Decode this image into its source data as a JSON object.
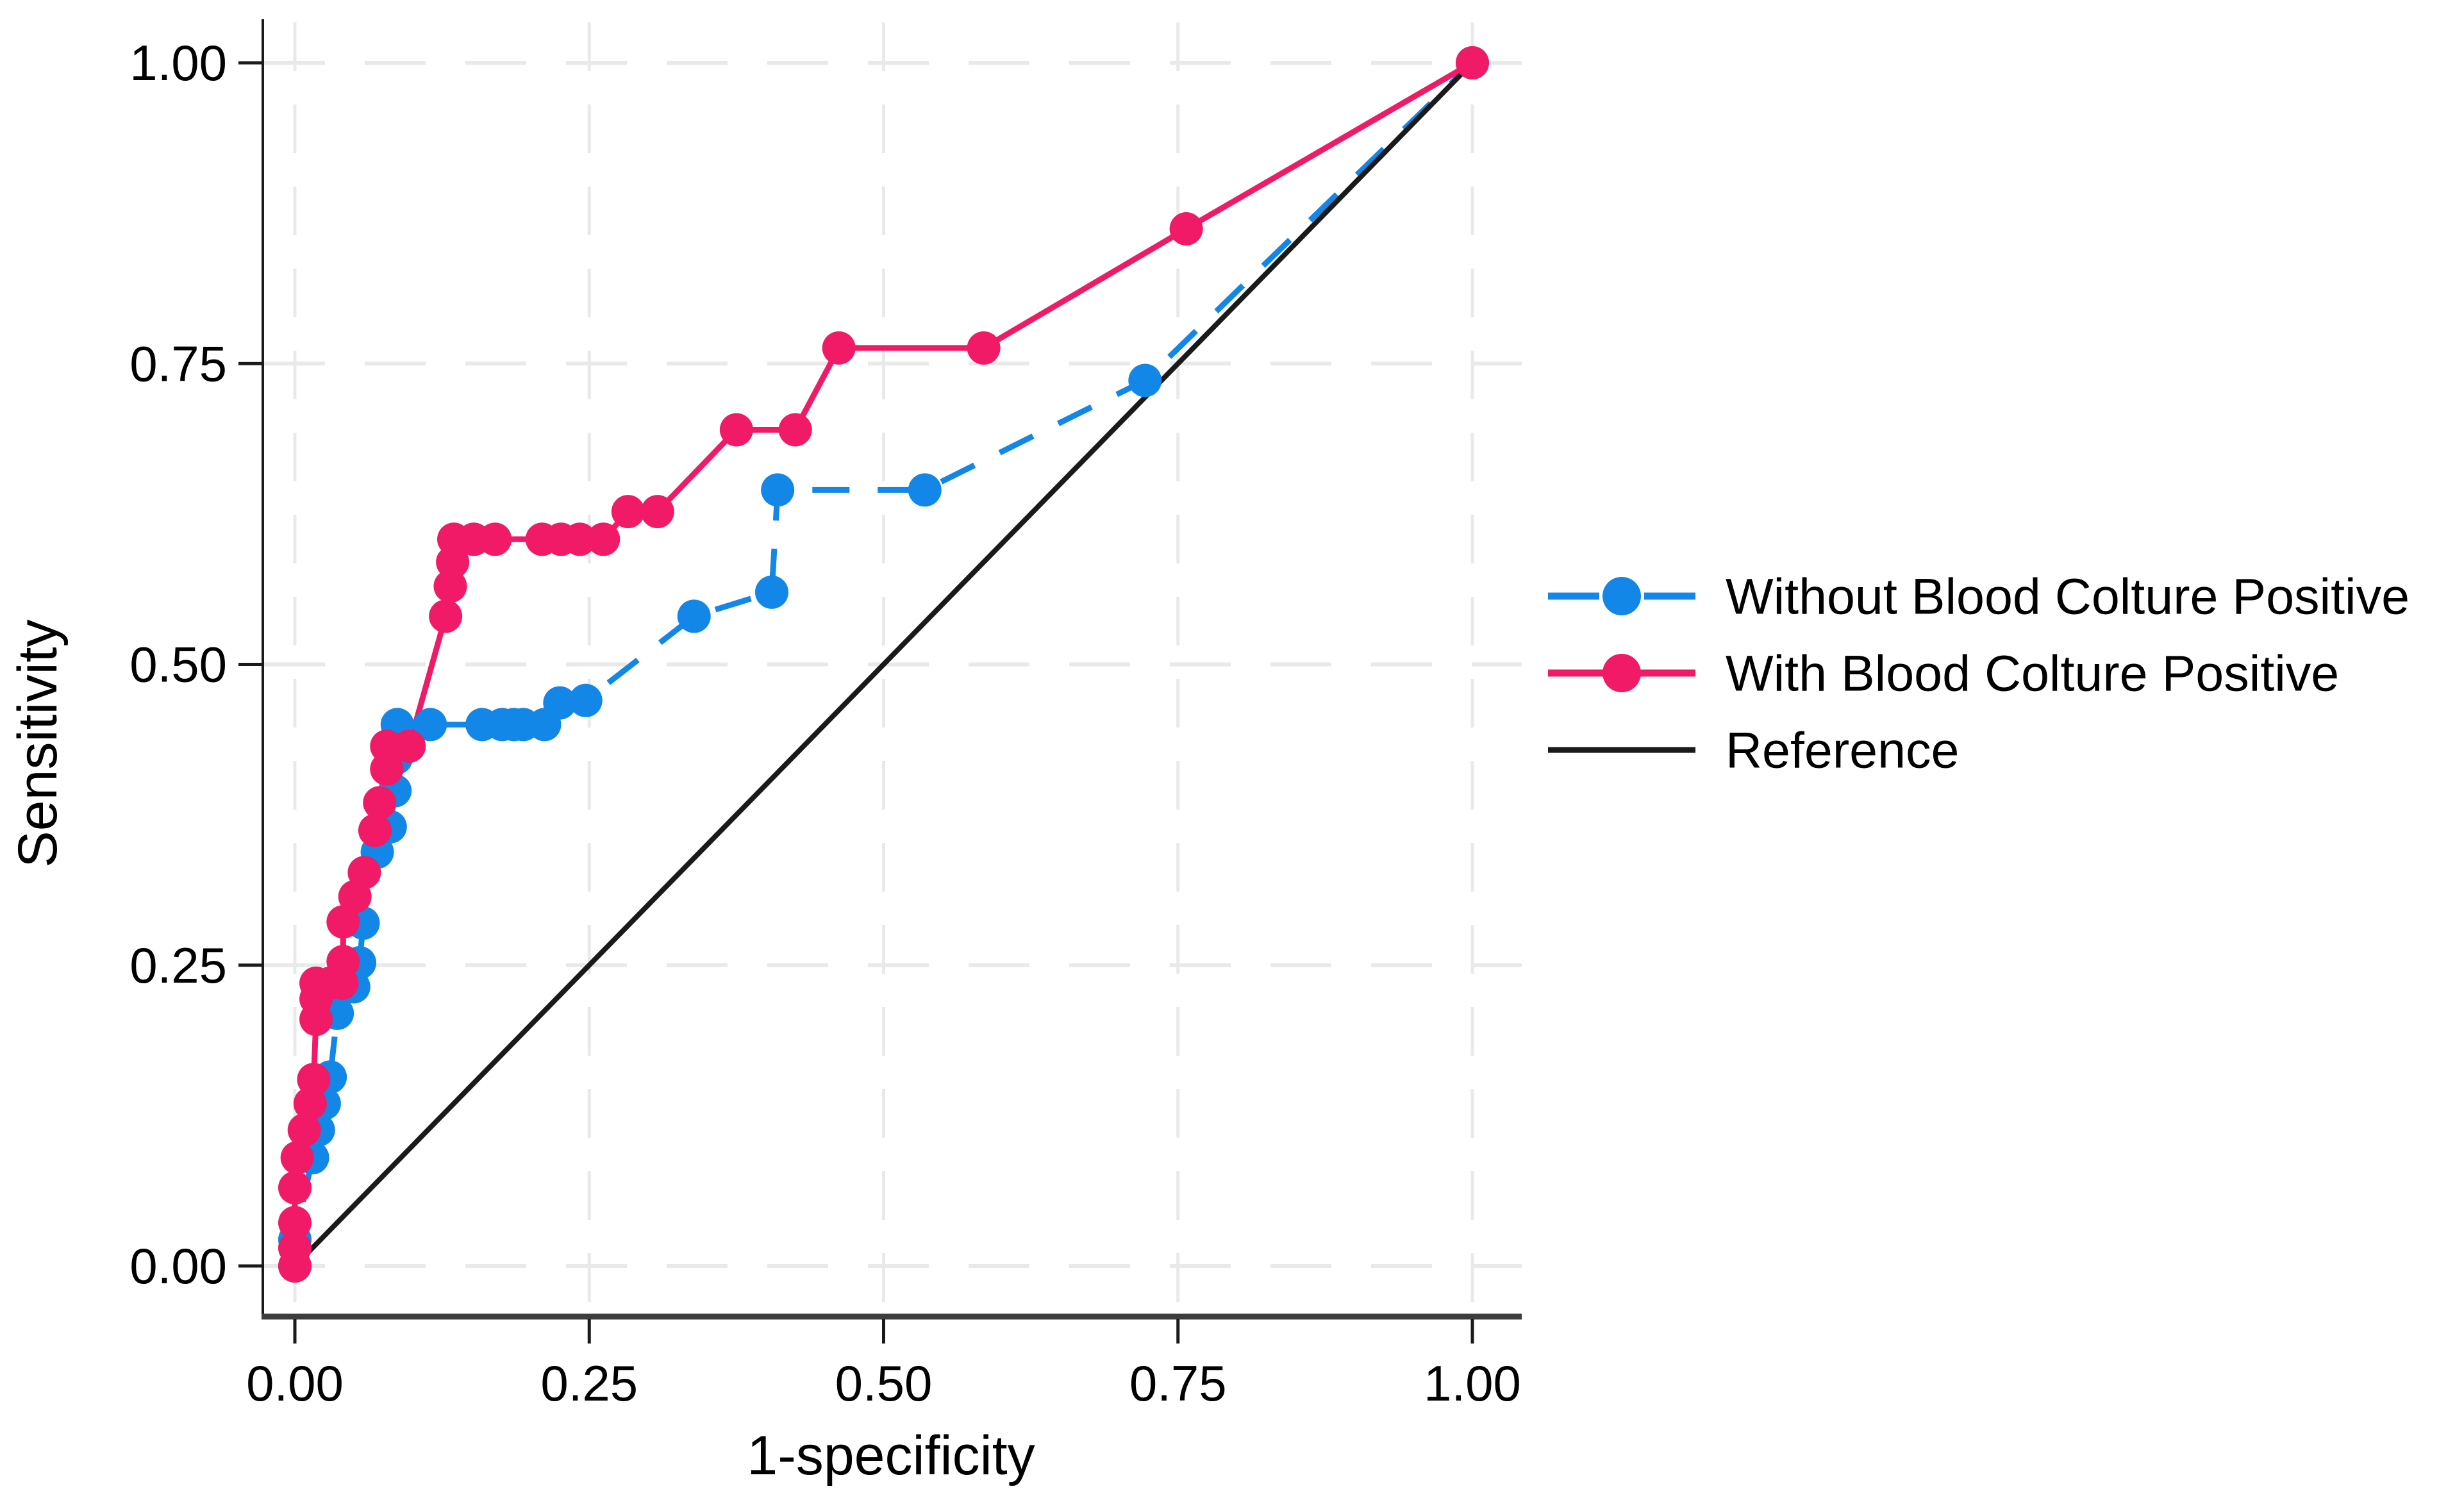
{
  "page": {
    "background": "#ffffff"
  },
  "chart_data": {
    "type": "line",
    "subtype": "roc-curves",
    "title": "",
    "xlabel": "1-specificity",
    "ylabel": "Sensitivity",
    "xlim": [
      0,
      1
    ],
    "ylim": [
      0,
      1
    ],
    "xticks": {
      "values": [
        0,
        0.25,
        0.5,
        0.75,
        1
      ],
      "labels": [
        "0.00",
        "0.25",
        "0.50",
        "0.75",
        "1.00"
      ]
    },
    "yticks": {
      "values": [
        0,
        0.25,
        0.5,
        0.75,
        1
      ],
      "labels": [
        "0.00",
        "0.25",
        "0.50",
        "0.75",
        "1.00"
      ]
    },
    "grid": {
      "horizontal": "dashed",
      "vertical": "dashed",
      "color": "#e9e9e9"
    },
    "axis_color": "#1a1a1a",
    "legend_position": "right-center",
    "series": [
      {
        "name": "Without Blood Colture Positive",
        "color": "#1287E8",
        "line_style": "dashed",
        "marker": "circle",
        "points": [
          [
            0.0,
            0.0
          ],
          [
            0.0,
            0.022
          ],
          [
            0.015,
            0.09
          ],
          [
            0.02,
            0.113
          ],
          [
            0.025,
            0.135
          ],
          [
            0.03,
            0.157
          ],
          [
            0.036,
            0.21
          ],
          [
            0.05,
            0.232
          ],
          [
            0.055,
            0.252
          ],
          [
            0.058,
            0.285
          ],
          [
            0.07,
            0.344
          ],
          [
            0.081,
            0.365
          ],
          [
            0.085,
            0.395
          ],
          [
            0.086,
            0.422
          ],
          [
            0.087,
            0.45
          ],
          [
            0.115,
            0.45
          ],
          [
            0.159,
            0.45
          ],
          [
            0.176,
            0.45
          ],
          [
            0.186,
            0.45
          ],
          [
            0.194,
            0.45
          ],
          [
            0.212,
            0.45
          ],
          [
            0.225,
            0.468
          ],
          [
            0.247,
            0.47
          ],
          [
            0.339,
            0.54
          ],
          [
            0.405,
            0.56
          ],
          [
            0.41,
            0.645
          ],
          [
            0.535,
            0.645
          ],
          [
            0.722,
            0.736
          ],
          [
            1.0,
            1.0
          ]
        ]
      },
      {
        "name": "With Blood Colture Positive",
        "color": "#F01A66",
        "line_style": "solid",
        "marker": "circle",
        "points": [
          [
            0.0,
            0.0
          ],
          [
            0.0,
            0.015
          ],
          [
            0.0,
            0.036
          ],
          [
            0.0,
            0.065
          ],
          [
            0.002,
            0.09
          ],
          [
            0.008,
            0.113
          ],
          [
            0.013,
            0.135
          ],
          [
            0.016,
            0.155
          ],
          [
            0.018,
            0.205
          ],
          [
            0.018,
            0.222
          ],
          [
            0.018,
            0.235
          ],
          [
            0.03,
            0.235
          ],
          [
            0.04,
            0.235
          ],
          [
            0.041,
            0.253
          ],
          [
            0.041,
            0.286
          ],
          [
            0.051,
            0.307
          ],
          [
            0.059,
            0.327
          ],
          [
            0.068,
            0.362
          ],
          [
            0.072,
            0.385
          ],
          [
            0.078,
            0.413
          ],
          [
            0.078,
            0.432
          ],
          [
            0.097,
            0.432
          ],
          [
            0.128,
            0.54
          ],
          [
            0.132,
            0.565
          ],
          [
            0.134,
            0.585
          ],
          [
            0.135,
            0.604
          ],
          [
            0.152,
            0.604
          ],
          [
            0.17,
            0.604
          ],
          [
            0.21,
            0.604
          ],
          [
            0.226,
            0.604
          ],
          [
            0.242,
            0.604
          ],
          [
            0.262,
            0.604
          ],
          [
            0.283,
            0.627
          ],
          [
            0.308,
            0.627
          ],
          [
            0.375,
            0.695
          ],
          [
            0.425,
            0.695
          ],
          [
            0.462,
            0.763
          ],
          [
            0.585,
            0.763
          ],
          [
            0.757,
            0.862
          ],
          [
            1.0,
            1.0
          ]
        ]
      },
      {
        "name": "Reference",
        "color": "#1a1a1a",
        "line_style": "solid",
        "marker": "none",
        "points": [
          [
            0,
            0
          ],
          [
            1,
            1
          ]
        ]
      }
    ]
  }
}
